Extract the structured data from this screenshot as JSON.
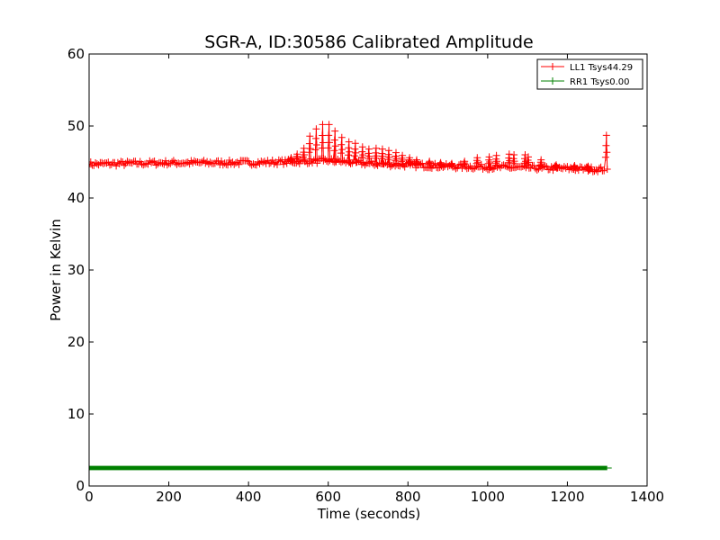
{
  "chart_data": {
    "type": "line",
    "title": "SGR-A, ID:30586 Calibrated Amplitude",
    "xlabel": "Time (seconds)",
    "ylabel": "Power in Kelvin",
    "xlim": [
      0,
      1400
    ],
    "ylim": [
      0,
      60
    ],
    "xticks": [
      0,
      200,
      400,
      600,
      800,
      1000,
      1200,
      1400
    ],
    "yticks": [
      0,
      10,
      20,
      30,
      40,
      50,
      60
    ],
    "xtick_labels": [
      "0",
      "200",
      "400",
      "600",
      "800",
      "1000",
      "1200",
      "1400"
    ],
    "ytick_labels": [
      "0",
      "10",
      "20",
      "30",
      "40",
      "50",
      "60"
    ],
    "grid": false,
    "legend_position": "top-right",
    "marker": "+",
    "series": [
      {
        "name": "LL1 Tsys44.29",
        "color": "#ff0000",
        "sample_interval_s": 4,
        "baseline_points": [
          [
            0,
            44.7
          ],
          [
            100,
            44.8
          ],
          [
            200,
            44.9
          ],
          [
            300,
            44.9
          ],
          [
            400,
            44.9
          ],
          [
            480,
            45.0
          ],
          [
            540,
            45.1
          ],
          [
            600,
            45.2
          ],
          [
            650,
            45.0
          ],
          [
            700,
            44.8
          ],
          [
            800,
            44.6
          ],
          [
            900,
            44.4
          ],
          [
            1000,
            44.3
          ],
          [
            1100,
            44.2
          ],
          [
            1200,
            44.1
          ],
          [
            1260,
            44.0
          ],
          [
            1295,
            44.0
          ]
        ],
        "noise_amplitude": 0.35,
        "spikes": [
          [
            505,
            45.6
          ],
          [
            520,
            46.1
          ],
          [
            537,
            46.9
          ],
          [
            552,
            48.6
          ],
          [
            568,
            49.6
          ],
          [
            584,
            50.2
          ],
          [
            600,
            50.2
          ],
          [
            615,
            49.3
          ],
          [
            632,
            48.4
          ],
          [
            650,
            47.8
          ],
          [
            666,
            47.6
          ],
          [
            684,
            47.1
          ],
          [
            700,
            46.8
          ],
          [
            718,
            46.9
          ],
          [
            734,
            46.8
          ],
          [
            750,
            46.6
          ],
          [
            768,
            46.3
          ],
          [
            784,
            45.9
          ],
          [
            802,
            45.6
          ],
          [
            820,
            45.3
          ],
          [
            852,
            45.1
          ],
          [
            880,
            44.9
          ],
          [
            908,
            44.8
          ],
          [
            940,
            45.1
          ],
          [
            972,
            45.6
          ],
          [
            1002,
            45.7
          ],
          [
            1020,
            45.9
          ],
          [
            1052,
            46.1
          ],
          [
            1064,
            46.0
          ],
          [
            1092,
            46.0
          ],
          [
            1100,
            45.7
          ],
          [
            1132,
            45.3
          ],
          [
            1170,
            44.6
          ],
          [
            1216,
            44.5
          ],
          [
            1250,
            44.4
          ],
          [
            1296,
            48.7
          ]
        ]
      },
      {
        "name": "RR1 Tsys0.00",
        "color": "#008000",
        "x_start": 0,
        "x_end": 1300,
        "value": 2.5,
        "band": [
          2.2,
          2.8
        ]
      }
    ]
  }
}
